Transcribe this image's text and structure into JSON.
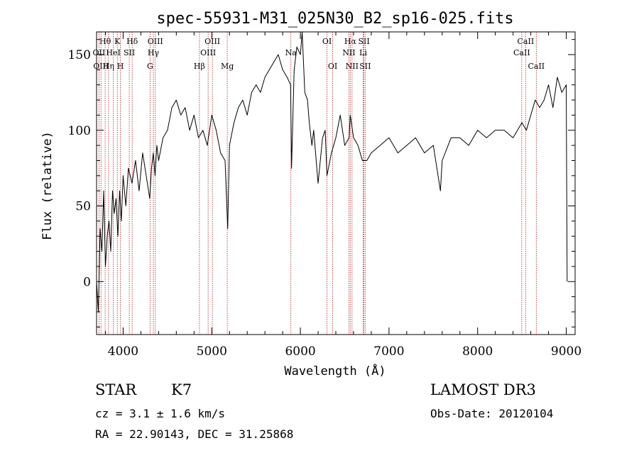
{
  "chart_data": {
    "type": "line",
    "title": "spec-55931-M31_025N30_B2_sp16-025.fits",
    "xlabel": "Wavelength (Å)",
    "ylabel": "Flux (relative)",
    "xlim": [
      3700,
      9100
    ],
    "ylim": [
      -35,
      165
    ],
    "xticks": [
      4000,
      5000,
      6000,
      7000,
      8000,
      9000
    ],
    "yticks": [
      0,
      50,
      100,
      150
    ],
    "xtick_labels": [
      "4000",
      "5000",
      "6000",
      "7000",
      "8000",
      "9000"
    ],
    "ytick_labels": [
      "0",
      "50",
      "100",
      "150"
    ],
    "line_color": "#000000",
    "marker_color": "#b22222",
    "series": [
      {
        "name": "flux",
        "x": [
          3700,
          3720,
          3740,
          3760,
          3780,
          3800,
          3820,
          3840,
          3860,
          3880,
          3900,
          3920,
          3940,
          3960,
          3980,
          4000,
          4030,
          4060,
          4100,
          4140,
          4180,
          4220,
          4260,
          4300,
          4320,
          4340,
          4360,
          4380,
          4400,
          4450,
          4500,
          4550,
          4600,
          4650,
          4700,
          4750,
          4800,
          4850,
          4900,
          4950,
          5000,
          5050,
          5100,
          5150,
          5180,
          5200,
          5250,
          5300,
          5350,
          5400,
          5450,
          5500,
          5550,
          5600,
          5650,
          5700,
          5750,
          5800,
          5850,
          5890,
          5900,
          5930,
          5960,
          6000,
          6020,
          6050,
          6080,
          6100,
          6130,
          6150,
          6200,
          6250,
          6280,
          6300,
          6350,
          6400,
          6450,
          6500,
          6550,
          6563,
          6600,
          6650,
          6700,
          6750,
          6800,
          6900,
          7000,
          7100,
          7200,
          7300,
          7400,
          7500,
          7580,
          7600,
          7700,
          7800,
          7900,
          8000,
          8100,
          8200,
          8300,
          8400,
          8500,
          8550,
          8600,
          8650,
          8700,
          8750,
          8800,
          8850,
          8900,
          8950,
          9000,
          9010
        ],
        "values": [
          0,
          -20,
          35,
          20,
          60,
          10,
          30,
          40,
          20,
          60,
          45,
          55,
          30,
          60,
          40,
          70,
          50,
          75,
          65,
          80,
          60,
          85,
          70,
          55,
          75,
          85,
          70,
          90,
          80,
          95,
          100,
          115,
          120,
          110,
          115,
          100,
          110,
          95,
          100,
          90,
          110,
          100,
          85,
          80,
          35,
          90,
          105,
          115,
          120,
          110,
          125,
          130,
          125,
          135,
          140,
          145,
          150,
          140,
          135,
          130,
          75,
          140,
          155,
          150,
          165,
          125,
          120,
          105,
          90,
          100,
          65,
          95,
          100,
          70,
          85,
          95,
          110,
          90,
          95,
          110,
          95,
          90,
          80,
          80,
          85,
          90,
          95,
          85,
          90,
          95,
          85,
          90,
          60,
          80,
          95,
          95,
          90,
          100,
          95,
          100,
          100,
          95,
          105,
          100,
          110,
          120,
          115,
          120,
          130,
          115,
          135,
          125,
          130,
          0
        ]
      }
    ],
    "line_markers": [
      {
        "label": "Hθ",
        "x": 3797,
        "row": 1
      },
      {
        "label": "OII",
        "x": 3727,
        "row": 2
      },
      {
        "label": "OIII",
        "x": 3750,
        "row": 3
      },
      {
        "label": "K",
        "x": 3934,
        "row": 1
      },
      {
        "label": "HeI",
        "x": 3889,
        "row": 2
      },
      {
        "label": "Hη",
        "x": 3835,
        "row": 3
      },
      {
        "label": "Hδ",
        "x": 4102,
        "row": 1
      },
      {
        "label": "SII",
        "x": 4069,
        "row": 2
      },
      {
        "label": "H",
        "x": 3969,
        "row": 3
      },
      {
        "label": "OIII",
        "x": 4363,
        "row": 1
      },
      {
        "label": "Hγ",
        "x": 4341,
        "row": 2
      },
      {
        "label": "G",
        "x": 4304,
        "row": 3
      },
      {
        "label": "OIII",
        "x": 5007,
        "row": 1
      },
      {
        "label": "OIII",
        "x": 4959,
        "row": 2
      },
      {
        "label": "Hβ",
        "x": 4861,
        "row": 3
      },
      {
        "label": "Mg",
        "x": 5175,
        "row": 3
      },
      {
        "label": "Na",
        "x": 5893,
        "row": 2
      },
      {
        "label": "OI",
        "x": 6300,
        "row": 1
      },
      {
        "label": "OI",
        "x": 6364,
        "row": 3
      },
      {
        "label": "Hα",
        "x": 6563,
        "row": 1
      },
      {
        "label": "SII",
        "x": 6717,
        "row": 1
      },
      {
        "label": "NII",
        "x": 6548,
        "row": 2
      },
      {
        "label": "Li",
        "x": 6708,
        "row": 2
      },
      {
        "label": "NII",
        "x": 6583,
        "row": 3
      },
      {
        "label": "SII",
        "x": 6731,
        "row": 3
      },
      {
        "label": "CaII",
        "x": 8542,
        "row": 1
      },
      {
        "label": "CaII",
        "x": 8498,
        "row": 2
      },
      {
        "label": "CaII",
        "x": 8662,
        "row": 3
      }
    ]
  },
  "info": {
    "object_class": "STAR",
    "subclass": "K7",
    "redshift_line": "cz = 3.1 ± 1.6 km/s",
    "coords_line": "RA =  22.90143, DEC =  31.25868",
    "survey": "LAMOST DR3",
    "obs_date_line": "Obs-Date: 20120104"
  }
}
